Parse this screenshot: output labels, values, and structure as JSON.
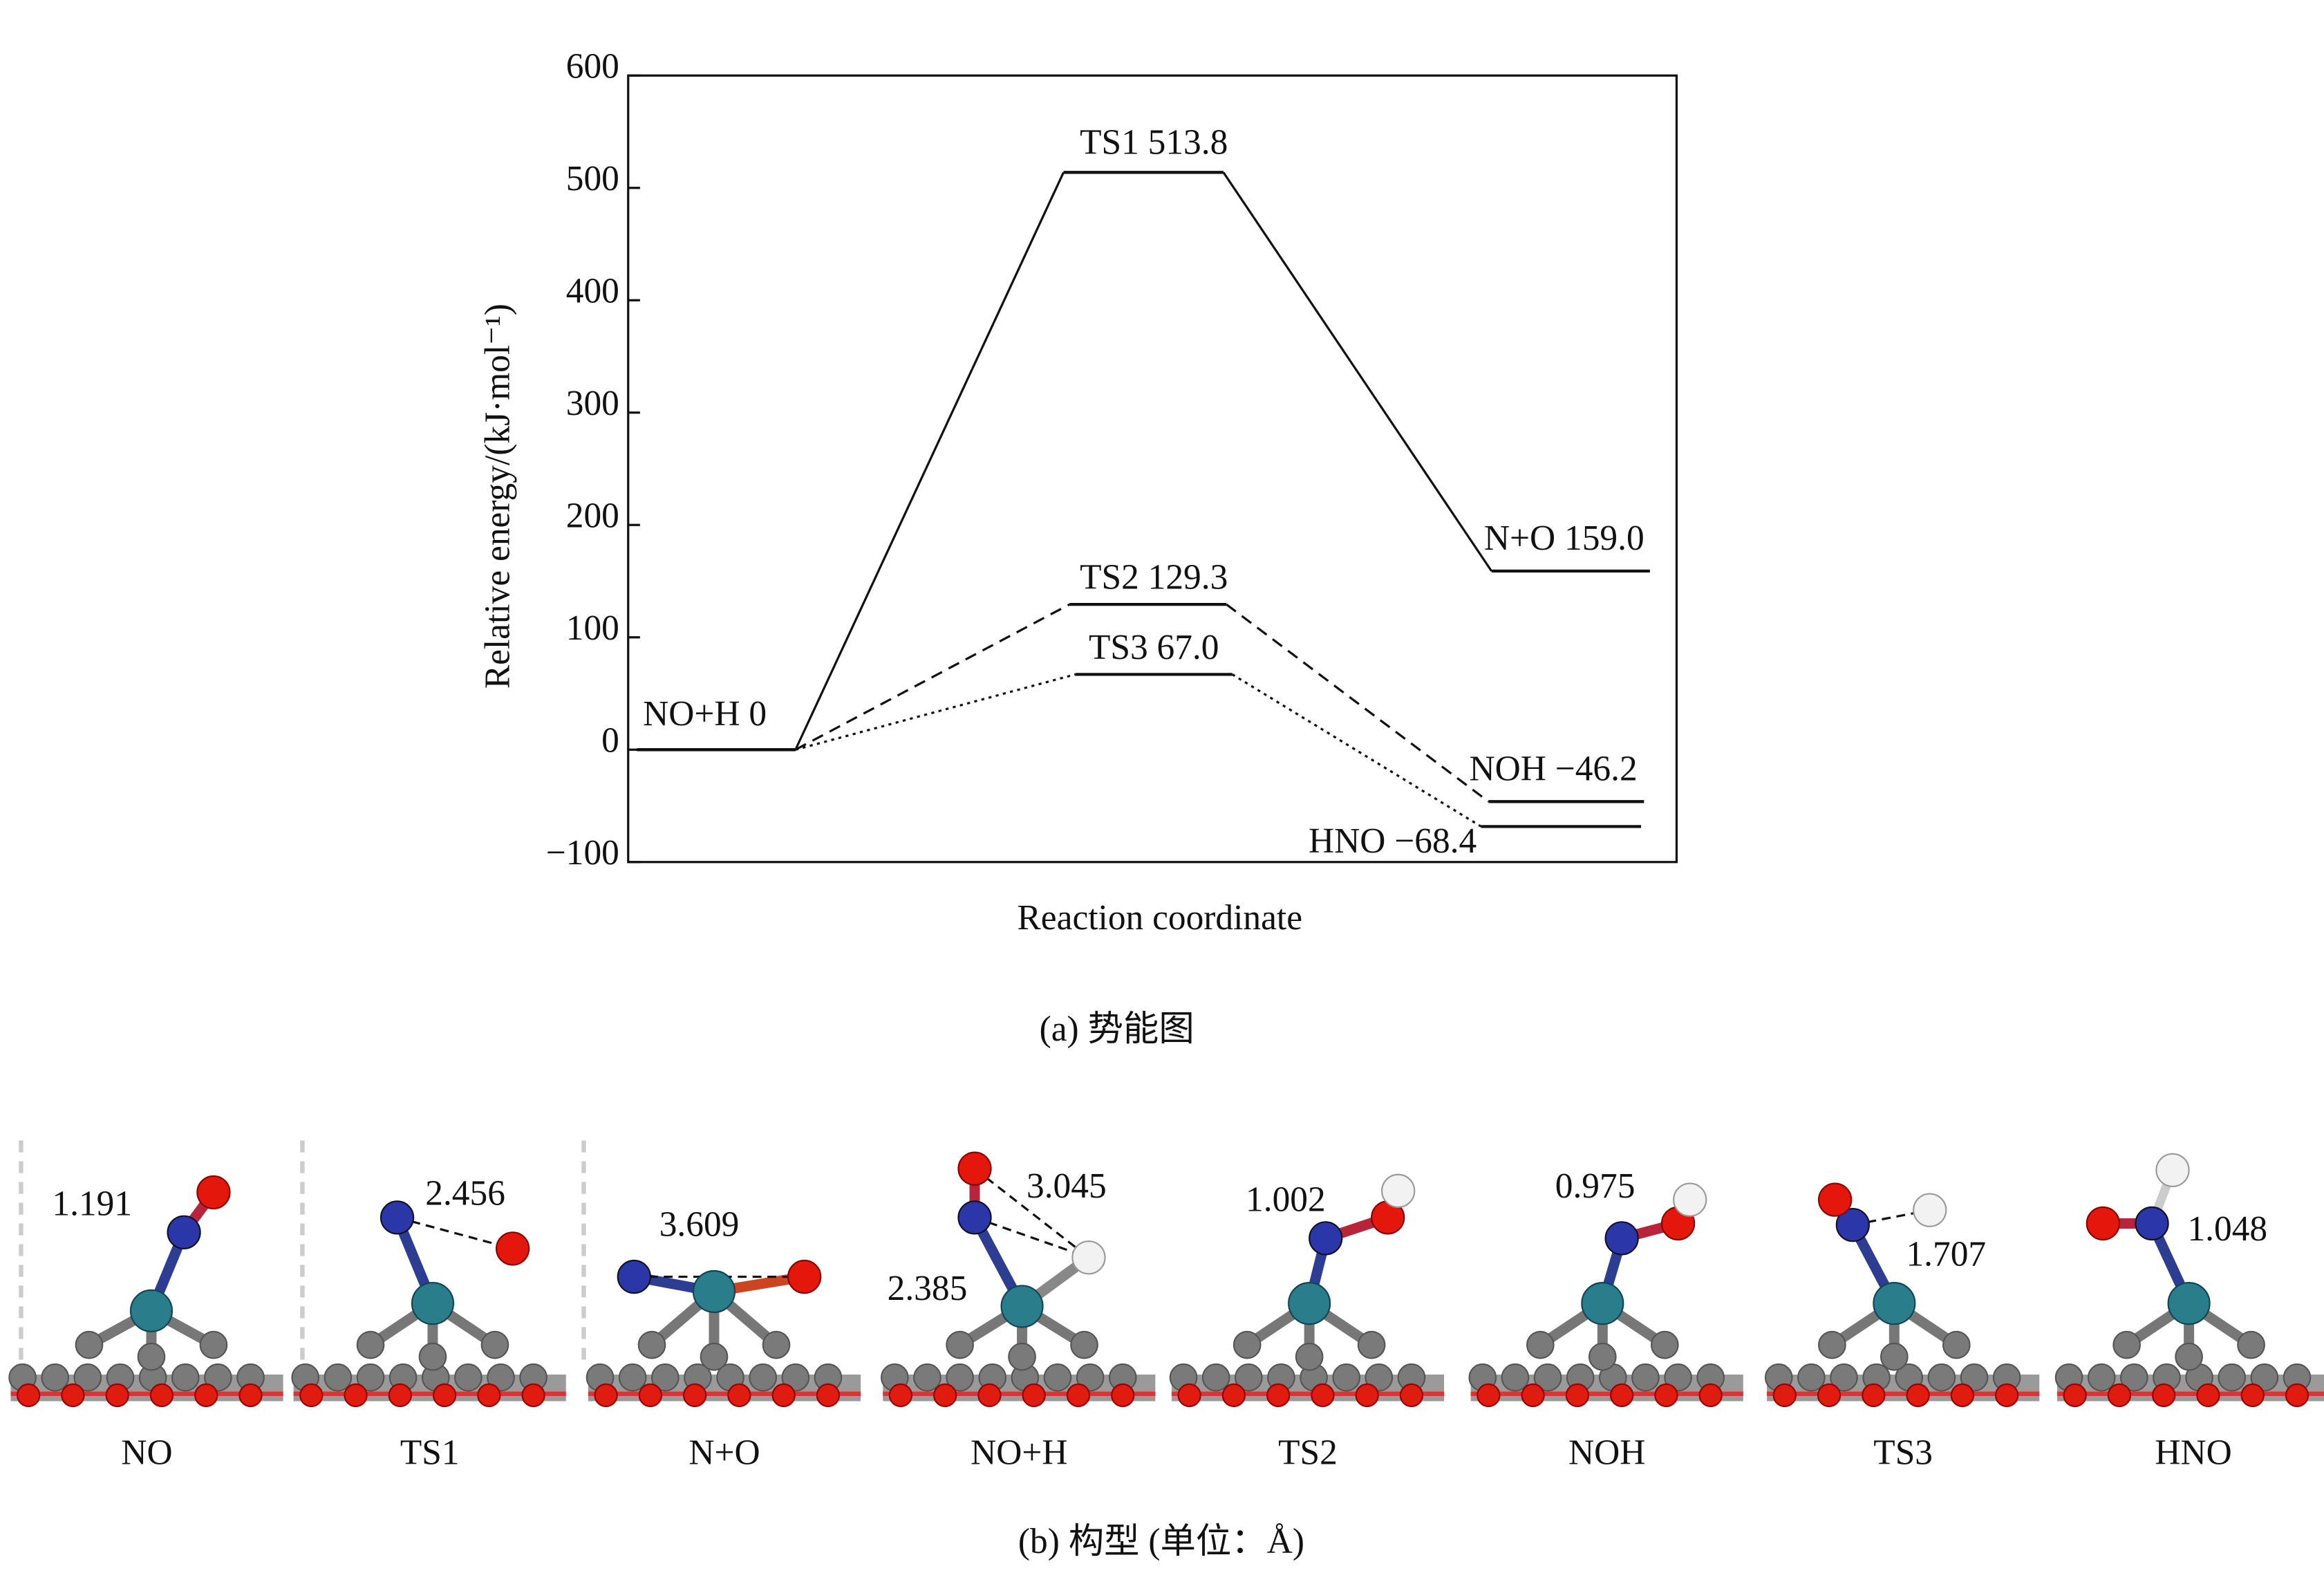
{
  "chart_data": {
    "type": "energy_profile",
    "ylabel": "Relative energy/(kJ·mol⁻¹)",
    "xlabel": "Reaction coordinate",
    "caption": "(a) 势能图",
    "ylim": [
      -100,
      600
    ],
    "yticks": [
      {
        "value": -100,
        "label": "−100"
      },
      0,
      100,
      200,
      300,
      400,
      500,
      600
    ],
    "series": [
      {
        "line_style": "solid",
        "color": "#111111",
        "values": [
          0,
          513.8,
          159.0
        ],
        "value_labels": [
          "NO+H 0",
          "TS1 513.8",
          "N+O 159.0"
        ]
      },
      {
        "line_style": "dashed",
        "color": "#111111",
        "values": [
          0,
          129.3,
          -46.2
        ],
        "value_labels": [
          null,
          "TS2 129.3",
          "NOH −46.2"
        ]
      },
      {
        "line_style": "dotted",
        "color": "#111111",
        "values": [
          0,
          67.0,
          -68.4
        ],
        "value_labels": [
          null,
          "TS3 67.0",
          "HNO −68.4"
        ]
      }
    ]
  },
  "structures": {
    "caption": "(b) 构型 (单位：Å)",
    "items": [
      {
        "name": "NO",
        "distances": [
          1.191
        ]
      },
      {
        "name": "TS1",
        "distances": [
          2.456
        ]
      },
      {
        "name": "N+O",
        "distances": [
          3.609
        ]
      },
      {
        "name": "NO+H",
        "distances": [
          3.045,
          2.385
        ]
      },
      {
        "name": "TS2",
        "distances": [
          1.002
        ]
      },
      {
        "name": "NOH",
        "distances": [
          0.975
        ]
      },
      {
        "name": "TS3",
        "distances": [
          1.707
        ]
      },
      {
        "name": "HNO",
        "distances": [
          1.048
        ]
      }
    ]
  }
}
